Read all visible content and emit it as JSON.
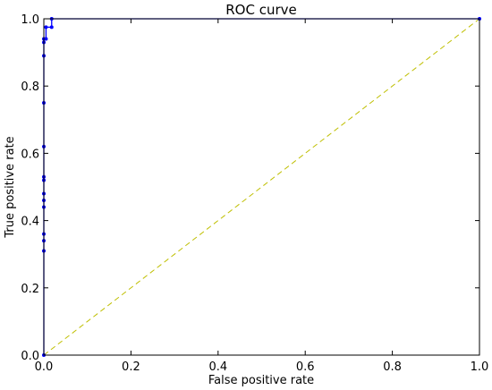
{
  "chart_data": {
    "type": "line",
    "title": "ROC curve",
    "xlabel": "False positive rate",
    "ylabel": "True positive rate",
    "xlim": [
      0.0,
      1.0
    ],
    "ylim": [
      0.0,
      1.0
    ],
    "xticks": [
      "0.0",
      "0.2",
      "0.4",
      "0.6",
      "0.8",
      "1.0"
    ],
    "yticks": [
      "0.0",
      "0.2",
      "0.4",
      "0.6",
      "0.8",
      "1.0"
    ],
    "grid": false,
    "series": [
      {
        "color": "#0000ff",
        "style": "solid-markers",
        "x": [
          0.0,
          0.0,
          0.0,
          0.0,
          0.0,
          0.0,
          0.0,
          0.0,
          0.0,
          0.0,
          0.0,
          0.0,
          0.0,
          0.0,
          0.005,
          0.005,
          0.018,
          0.018,
          1.0
        ],
        "y": [
          0.0,
          0.31,
          0.34,
          0.36,
          0.44,
          0.46,
          0.48,
          0.52,
          0.53,
          0.62,
          0.75,
          0.89,
          0.93,
          0.94,
          0.94,
          0.975,
          0.975,
          1.0,
          1.0
        ]
      },
      {
        "color": "#bfbf00",
        "style": "dashed",
        "x": [
          0.0,
          1.0
        ],
        "y": [
          0.0,
          1.0
        ]
      }
    ]
  }
}
